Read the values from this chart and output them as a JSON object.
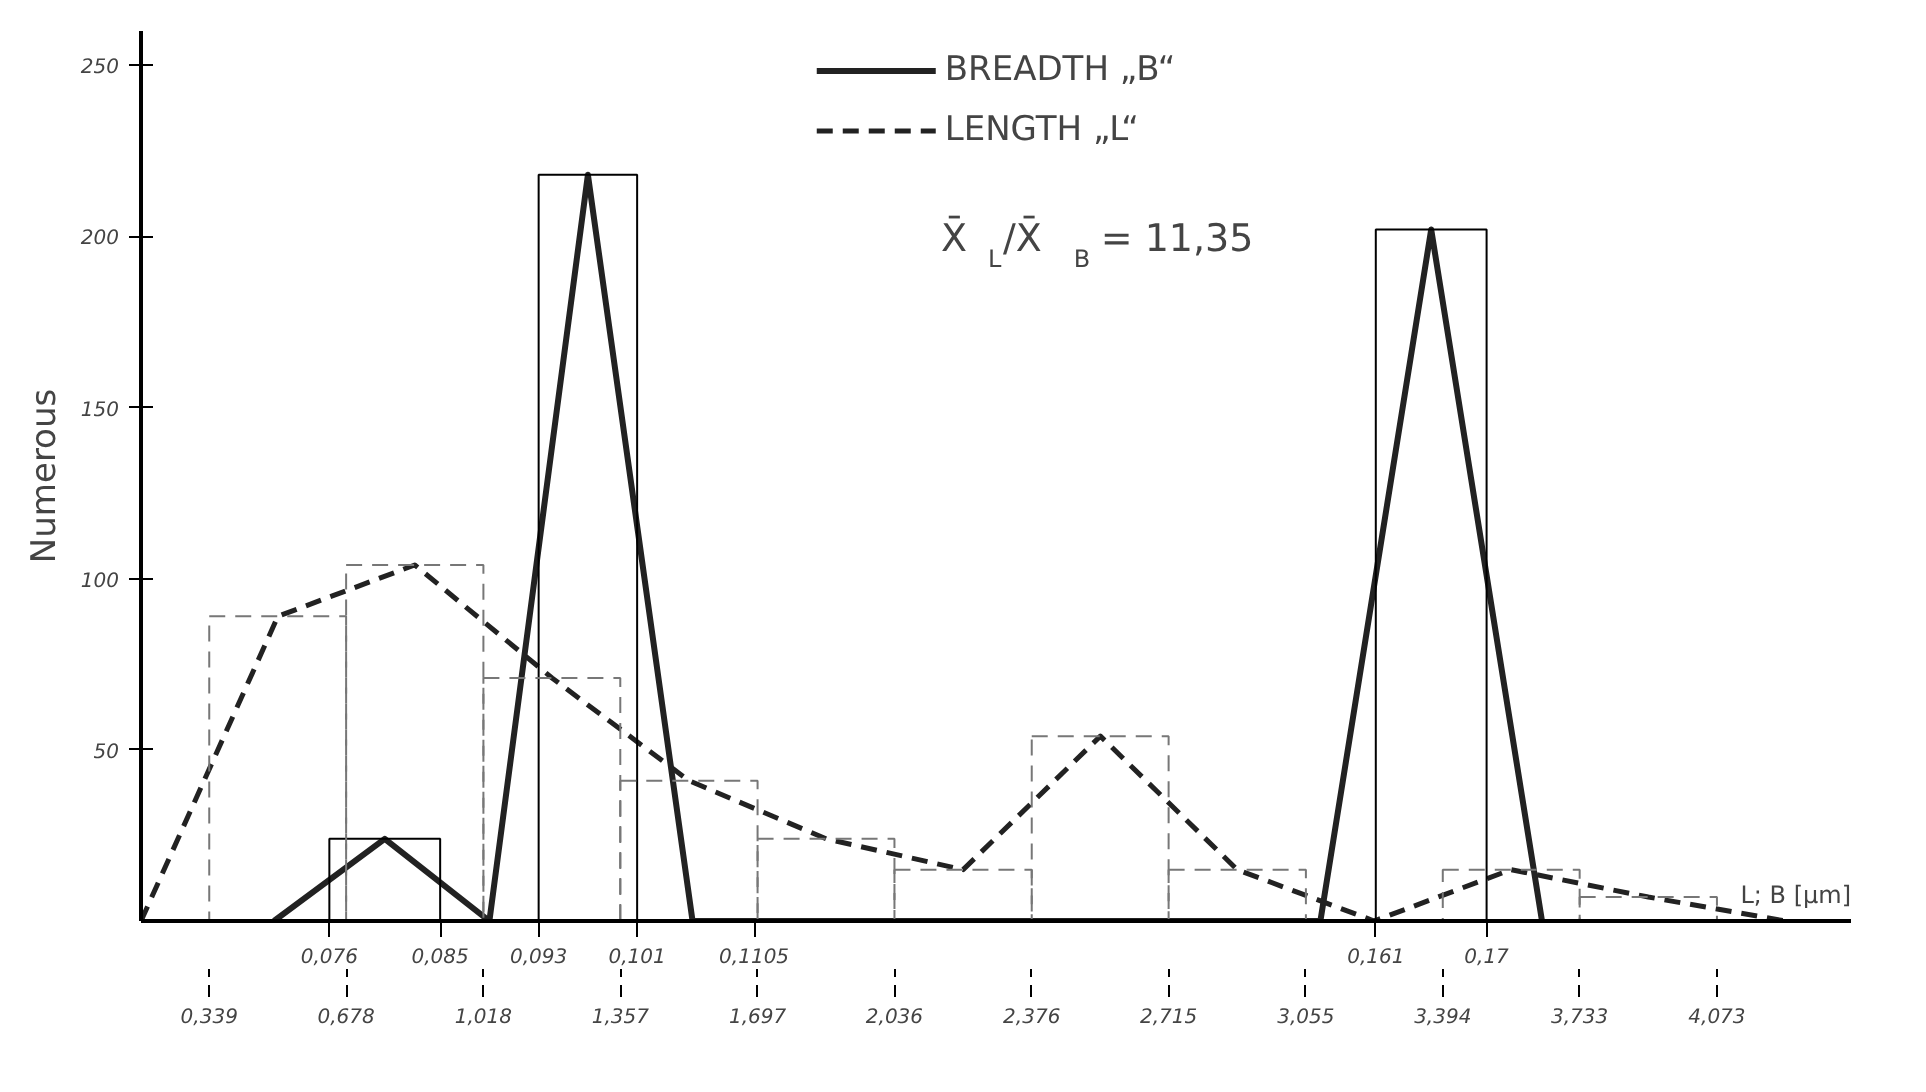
{
  "chart_data": {
    "type": "line",
    "ylabel": "Numerous",
    "xlabel": "L; B [µm]",
    "annotations": [
      "X̄$_{L}$/X̄$_{B}$ = 11,35"
    ],
    "xlim": [
      0.17,
      4.405
    ],
    "x2lim": [
      0.0607,
      0.1996
    ],
    "ylim": [
      0,
      260
    ],
    "xticks": [
      {
        "value": 0.339,
        "label": "0,339"
      },
      {
        "value": 0.678,
        "label": "0,678"
      },
      {
        "value": 1.018,
        "label": "1,018"
      },
      {
        "value": 1.357,
        "label": "1,357"
      },
      {
        "value": 1.697,
        "label": "1,697"
      },
      {
        "value": 2.036,
        "label": "2,036"
      },
      {
        "value": 2.376,
        "label": "2,376"
      },
      {
        "value": 2.715,
        "label": "2,715"
      },
      {
        "value": 3.055,
        "label": "3,055"
      },
      {
        "value": 3.394,
        "label": "3,394"
      },
      {
        "value": 3.733,
        "label": "3,733"
      },
      {
        "value": 4.073,
        "label": "4,073"
      }
    ],
    "x2ticks": [
      {
        "value": 0.076,
        "label": "0,076"
      },
      {
        "value": 0.085,
        "label": "0,085"
      },
      {
        "value": 0.093,
        "label": "0,093"
      },
      {
        "value": 0.101,
        "label": "0,101"
      },
      {
        "value": 0.1105,
        "label": "0,1105"
      },
      {
        "value": 0.161,
        "label": "0,161"
      },
      {
        "value": 0.17,
        "label": "0,17"
      }
    ],
    "yticks": [
      50,
      100,
      150,
      200,
      250
    ],
    "grid": false,
    "legend": "top",
    "series": [
      {
        "name": "BREADTH „B“",
        "type": "line",
        "axis": "x2",
        "color": "#222222",
        "line_style": "solid",
        "x": [
          0.0715,
          0.0805,
          0.089,
          0.097,
          0.1055,
          0.1565,
          0.1655,
          0.1745
        ],
        "values": [
          0,
          24,
          0,
          218,
          0,
          0,
          202,
          0
        ]
      },
      {
        "name": "LENGTH „L“",
        "color": "#222222",
        "line_style": "dashed",
        "x": [
          0.17,
          0.509,
          0.848,
          1.188,
          1.527,
          1.867,
          2.206,
          2.546,
          2.885,
          3.224,
          3.563,
          3.903,
          4.243
        ],
        "values": [
          0,
          89,
          104,
          71,
          41,
          24,
          15,
          54,
          15,
          0,
          15,
          7,
          0
        ]
      },
      {
        "type": "histogram",
        "axis": "x2",
        "color": "#000000",
        "line_style": "solid",
        "bins": [
          0.076,
          0.085,
          0.093,
          0.101,
          0.161,
          0.17
        ],
        "values": [
          24,
          0,
          218,
          0,
          202
        ]
      },
      {
        "type": "histogram",
        "color": "#777777",
        "line_style": "dashed",
        "bins": [
          0.339,
          0.678,
          1.018,
          1.357,
          1.697,
          2.036,
          2.376,
          2.715,
          3.055,
          3.394,
          3.733,
          4.073
        ],
        "values": [
          89,
          104,
          71,
          41,
          24,
          15,
          54,
          15,
          0,
          15,
          7
        ]
      }
    ]
  }
}
